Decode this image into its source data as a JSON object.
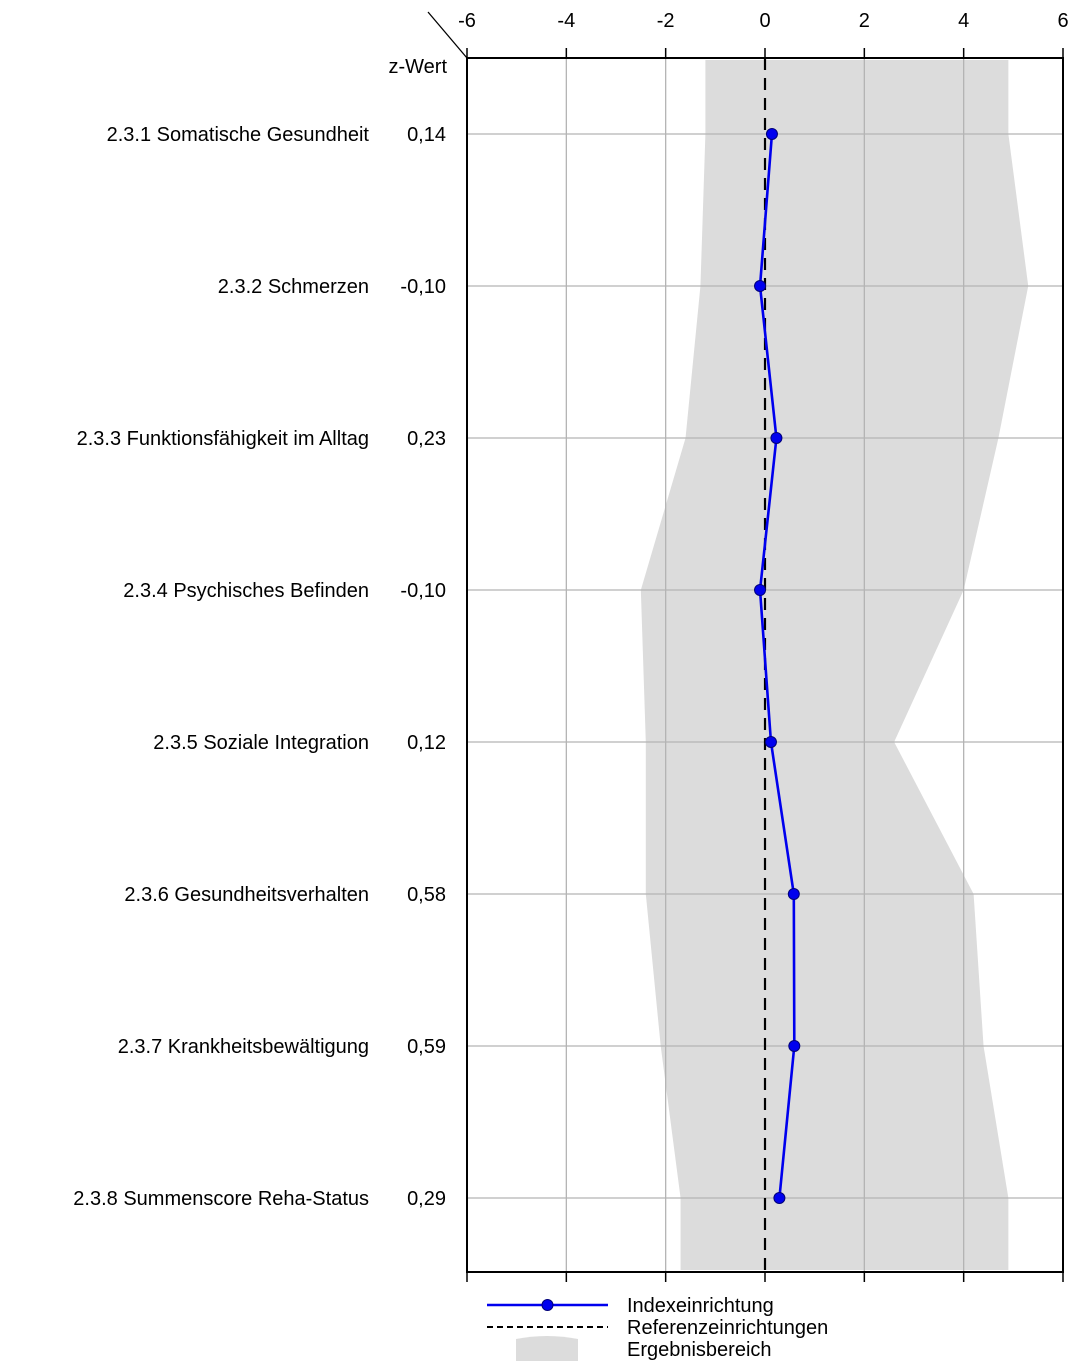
{
  "chart_data": {
    "type": "line",
    "orientation": "horizontal-profile",
    "x_ticks": [
      "-6",
      "-4",
      "-2",
      "0",
      "2",
      "4",
      "6"
    ],
    "xlim": [
      -6,
      6
    ],
    "value_header": "z-Wert",
    "grid": true,
    "legend_position": "bottom",
    "reference_value": 0,
    "categories": [
      "2.3.1 Somatische Gesundheit",
      "2.3.2 Schmerzen",
      "2.3.3 Funktionsfähigkeit im Alltag",
      "2.3.4 Psychisches Befinden",
      "2.3.5 Soziale Integration",
      "2.3.6 Gesundheitsverhalten",
      "2.3.7 Krankheitsbewältigung",
      "2.3.8 Summenscore Reha-Status"
    ],
    "value_labels": [
      "0,14",
      "-0,10",
      "0,23",
      "-0,10",
      "0,12",
      "0,58",
      "0,59",
      "0,29"
    ],
    "series": [
      {
        "name": "Indexeinrichtung",
        "values": [
          0.14,
          -0.1,
          0.23,
          -0.1,
          0.12,
          0.58,
          0.59,
          0.29
        ],
        "color": "#0000ee"
      }
    ],
    "range_band": {
      "name": "Ergebnisbereich",
      "color": "#dcdcdc",
      "lower": [
        -1.2,
        -1.3,
        -1.6,
        -2.5,
        -2.4,
        -2.4,
        -2.1,
        -1.7
      ],
      "upper": [
        4.9,
        5.3,
        4.7,
        4.0,
        2.6,
        4.2,
        4.4,
        4.9
      ]
    },
    "legend": [
      "Indexeinrichtung",
      "Referenzeinrichtungen",
      "Ergebnisbereich"
    ]
  }
}
